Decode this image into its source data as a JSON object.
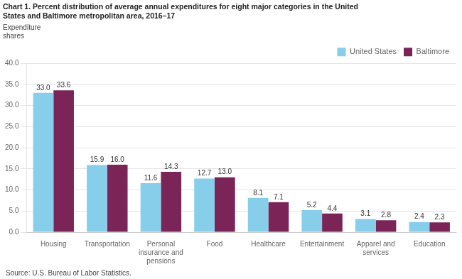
{
  "chart_data": {
    "type": "bar",
    "title": "Chart 1. Percent distribution of average annual expenditures for eight major categories in the United\nStates and Baltimore metropolitan area, 2016–17",
    "ylabel": "Expenditure\nshares",
    "annotations": [
      "Source: U.S. Bureau of Labor Statistics."
    ],
    "categories": [
      "Housing",
      "Transportation",
      "Personal\ninsurance and\npensions",
      "Food",
      "Healthcare",
      "Entertainment",
      "Apparel and\nservices",
      "Education"
    ],
    "series": [
      {
        "name": "United States",
        "color": "#87CEEB",
        "values": [
          33.0,
          15.9,
          11.6,
          12.7,
          8.1,
          5.2,
          3.1,
          2.4
        ],
        "value_labels": [
          "33.0",
          "15.9",
          "11.6",
          "12.7",
          "8.1",
          "5.2",
          "3.1",
          "2.4"
        ]
      },
      {
        "name": "Baltimore",
        "color": "#7B2457",
        "values": [
          33.6,
          16.0,
          14.3,
          13.0,
          7.1,
          4.4,
          2.8,
          2.3
        ],
        "value_labels": [
          "33.6",
          "16.0",
          "14.3",
          "13.0",
          "7.1",
          "4.4",
          "2.8",
          "2.3"
        ]
      }
    ],
    "ylim": [
      0,
      40
    ],
    "yticks": [
      {
        "value": 0,
        "label": "0.0"
      },
      {
        "value": 5,
        "label": "5.0"
      },
      {
        "value": 10,
        "label": "10.0"
      },
      {
        "value": 15,
        "label": "15.0"
      },
      {
        "value": 20,
        "label": "20.0"
      },
      {
        "value": 25,
        "label": "25.0"
      },
      {
        "value": 30,
        "label": "30.0"
      },
      {
        "value": 35,
        "label": "35.0"
      },
      {
        "value": 40,
        "label": "40.0"
      }
    ],
    "grid": true,
    "legend": "upper right",
    "data_labels": true
  }
}
